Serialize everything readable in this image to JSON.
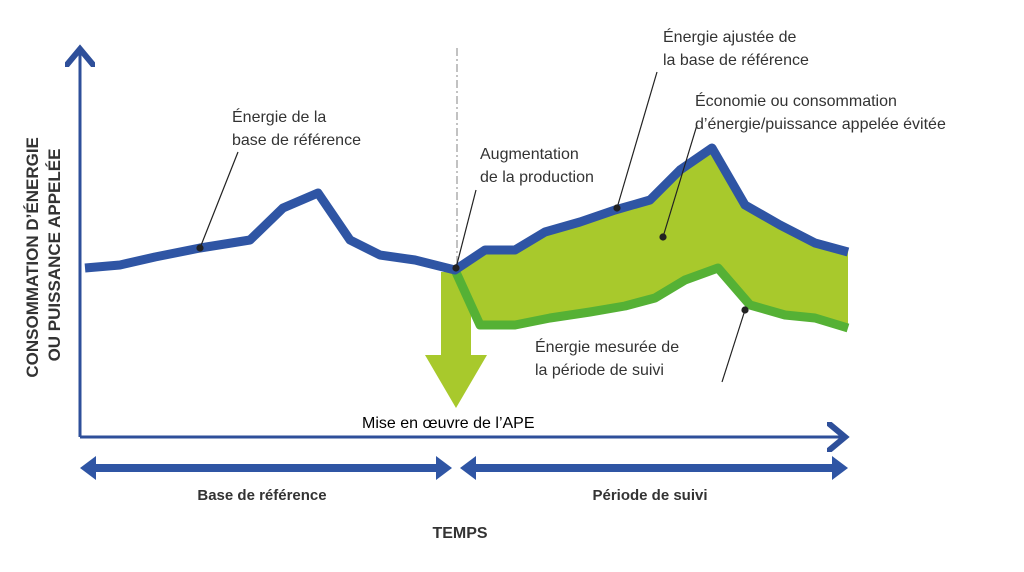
{
  "axes": {
    "y_label": [
      "CONSOMMATION D’ÉNERGIE",
      "OU PUISSANCE APPELÉE"
    ],
    "x_label": "TEMPS"
  },
  "annotations": {
    "baseline_energy": [
      "Énergie de la",
      "base de référence"
    ],
    "adjusted_baseline": [
      "Énergie ajustée de",
      "la base de référence"
    ],
    "savings": [
      "Économie ou consommation",
      "d’énergie/puissance appelée évitée"
    ],
    "production_increase": [
      "Augmentation",
      "de la production"
    ],
    "measured_energy": [
      "Énergie mesurée de",
      "la période de suivi"
    ]
  },
  "implementation": "Mise en œuvre de l’APE",
  "periods": [
    "Base de référence",
    "Période de suivi"
  ]
}
